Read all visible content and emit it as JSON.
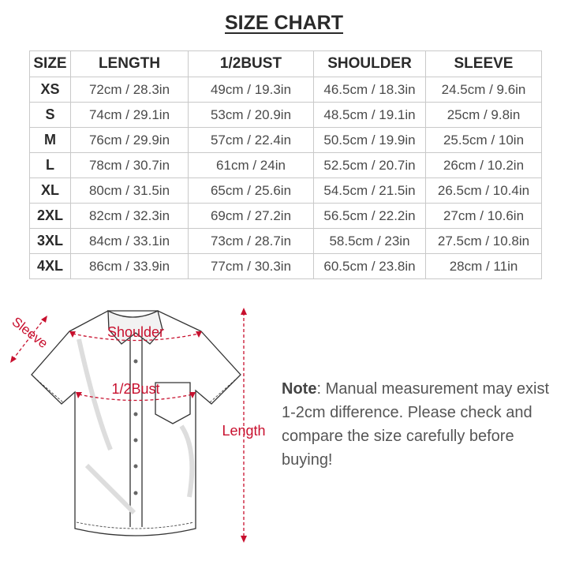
{
  "title": "SIZE CHART",
  "table": {
    "headers": [
      "SIZE",
      "LENGTH",
      "1/2BUST",
      "SHOULDER",
      "SLEEVE"
    ],
    "rows": [
      [
        "XS",
        "72cm / 28.3in",
        "49cm / 19.3in",
        "46.5cm / 18.3in",
        "24.5cm / 9.6in"
      ],
      [
        "S",
        "74cm / 29.1in",
        "53cm / 20.9in",
        "48.5cm / 19.1in",
        "25cm / 9.8in"
      ],
      [
        "M",
        "76cm / 29.9in",
        "57cm / 22.4in",
        "50.5cm / 19.9in",
        "25.5cm / 10in"
      ],
      [
        "L",
        "78cm / 30.7in",
        "61cm / 24in",
        "52.5cm / 20.7in",
        "26cm / 10.2in"
      ],
      [
        "XL",
        "80cm / 31.5in",
        "65cm / 25.6in",
        "54.5cm / 21.5in",
        "26.5cm / 10.4in"
      ],
      [
        "2XL",
        "82cm / 32.3in",
        "69cm / 27.2in",
        "56.5cm / 22.2in",
        "27cm / 10.6in"
      ],
      [
        "3XL",
        "84cm / 33.1in",
        "73cm / 28.7in",
        "58.5cm / 23in",
        "27.5cm / 10.8in"
      ],
      [
        "4XL",
        "86cm / 33.9in",
        "77cm / 30.3in",
        "60.5cm / 23.8in",
        "28cm / 11in"
      ]
    ]
  },
  "diagram": {
    "sleeve": "Sleeve",
    "shoulder": "Shoulder",
    "bust": "1/2Bust",
    "length": "Length",
    "accent_color": "#c8102e"
  },
  "note": {
    "label": "Note",
    "text": ": Manual measurement may exist 1-2cm difference. Please check and compare the size carefully before buying!"
  }
}
